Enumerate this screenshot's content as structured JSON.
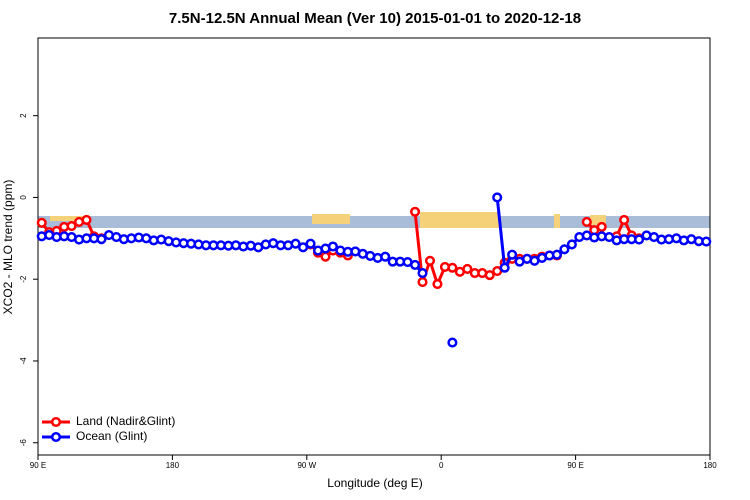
{
  "chart_data": {
    "type": "line",
    "title": "7.5N-12.5N Annual Mean (Ver 10)   2015-01-01 to 2020-12-18",
    "x_label": "Longitude (deg E)",
    "y_label": "XCO2 - MLO trend (ppm)",
    "xlim": [
      90,
      540
    ],
    "xticks": [
      {
        "value": 90,
        "label": "90 E"
      },
      180,
      {
        "value": 270,
        "label": "90 W"
      },
      {
        "value": 360,
        "label": "0"
      },
      {
        "value": 450,
        "label": "90 E"
      },
      {
        "value": 540,
        "label": "180"
      }
    ],
    "ylim": [
      -6.3,
      3.9
    ],
    "yticks": [
      -6,
      -4,
      -2,
      0,
      2
    ],
    "legend": "bottom-left",
    "x": [
      92.5,
      97.5,
      102.5,
      107.5,
      112.5,
      117.5,
      122.5,
      127.5,
      132.5,
      137.5,
      142.5,
      147.5,
      152.5,
      157.5,
      162.5,
      167.5,
      172.5,
      177.5,
      182.5,
      187.5,
      192.5,
      197.5,
      202.5,
      207.5,
      212.5,
      217.5,
      222.5,
      227.5,
      232.5,
      237.5,
      242.5,
      247.5,
      252.5,
      257.5,
      262.5,
      267.5,
      272.5,
      277.5,
      282.5,
      287.5,
      292.5,
      297.5,
      302.5,
      307.5,
      312.5,
      317.5,
      322.5,
      327.5,
      332.5,
      337.5,
      342.5,
      347.5,
      352.5,
      357.5,
      362.5,
      367.5,
      372.5,
      377.5,
      382.5,
      387.5,
      392.5,
      397.5,
      402.5,
      407.5,
      412.5,
      417.5,
      422.5,
      427.5,
      432.5,
      437.5,
      442.5,
      447.5,
      452.5,
      457.5,
      462.5,
      467.5,
      472.5,
      477.5,
      482.5,
      487.5,
      492.5,
      497.5,
      502.5,
      507.5,
      512.5,
      517.5,
      522.5,
      527.5,
      532.5,
      537.5
    ],
    "series": [
      {
        "name": "Land (Nadir&Glint)",
        "color": "#ff0000",
        "values": [
          -0.62,
          -0.85,
          -0.82,
          -0.72,
          -0.7,
          -0.6,
          -0.55,
          -0.95,
          -1.0,
          null,
          null,
          null,
          null,
          null,
          null,
          null,
          null,
          null,
          null,
          null,
          null,
          null,
          null,
          null,
          null,
          null,
          null,
          null,
          null,
          null,
          null,
          null,
          null,
          null,
          null,
          null,
          -1.15,
          -1.35,
          -1.45,
          -1.3,
          -1.35,
          -1.42,
          null,
          null,
          null,
          null,
          null,
          null,
          null,
          null,
          -0.35,
          -2.07,
          -1.55,
          -2.12,
          -1.7,
          -1.72,
          -1.82,
          -1.75,
          -1.85,
          -1.85,
          -1.9,
          -1.8,
          -1.6,
          -1.5,
          -1.5,
          -1.5,
          -1.5,
          -1.45,
          -1.42,
          -1.42,
          null,
          null,
          null,
          -0.6,
          -0.8,
          -0.72,
          null,
          -0.95,
          -0.55,
          -0.93,
          -1.0,
          null,
          null,
          null,
          null,
          null,
          null,
          null,
          null,
          null
        ]
      },
      {
        "name": "Ocean (Glint)",
        "color": "#0000ff",
        "values": [
          -0.95,
          -0.92,
          -0.97,
          -0.95,
          -0.97,
          -1.03,
          -1.0,
          -1.0,
          -1.02,
          -0.92,
          -0.97,
          -1.02,
          -1.0,
          -0.98,
          -1.0,
          -1.05,
          -1.03,
          -1.07,
          -1.1,
          -1.12,
          -1.13,
          -1.15,
          -1.17,
          -1.17,
          -1.17,
          -1.18,
          -1.17,
          -1.2,
          -1.18,
          -1.22,
          -1.15,
          -1.12,
          -1.17,
          -1.17,
          -1.13,
          -1.22,
          -1.13,
          -1.3,
          -1.25,
          -1.2,
          -1.3,
          -1.33,
          -1.32,
          -1.38,
          -1.43,
          -1.48,
          -1.45,
          -1.57,
          -1.57,
          -1.58,
          -1.65,
          -1.85,
          null,
          null,
          null,
          -3.55,
          null,
          null,
          null,
          null,
          null,
          0.0,
          -1.72,
          -1.4,
          -1.57,
          -1.5,
          -1.55,
          -1.48,
          -1.42,
          -1.4,
          -1.27,
          -1.15,
          -0.97,
          -0.93,
          -0.98,
          -0.95,
          -0.97,
          -1.05,
          -1.02,
          -1.02,
          -1.03,
          -0.93,
          -0.97,
          -1.03,
          -1.02,
          -1.0,
          -1.05,
          -1.02,
          -1.07,
          -1.08
        ]
      }
    ]
  }
}
